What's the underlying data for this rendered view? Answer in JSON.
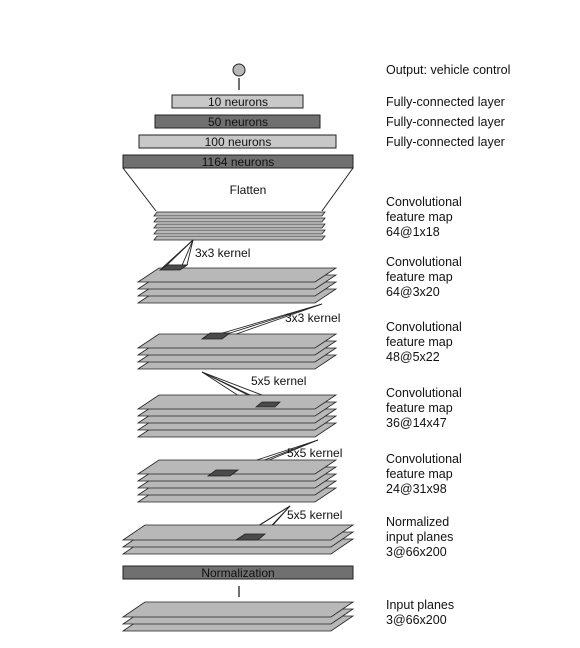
{
  "output_label": "Output: vehicle control",
  "fc_layers": [
    {
      "box_text": "10 neurons",
      "side_label": "Fully-connected layer",
      "fill": "#c8c8c8"
    },
    {
      "box_text": "50 neurons",
      "side_label": "Fully-connected layer",
      "fill": "#707070"
    },
    {
      "box_text": "100 neurons",
      "side_label": "Fully-connected layer",
      "fill": "#c8c8c8"
    },
    {
      "box_text": "1164 neurons",
      "side_label": "",
      "fill": "#707070"
    }
  ],
  "flatten_label": "Flatten",
  "kernels": [
    "3x3 kernel",
    "3x3 kernel",
    "5x5 kernel",
    "5x5 kernel",
    "5x5 kernel"
  ],
  "feature_maps": [
    {
      "lines": [
        "Convolutional",
        "feature map",
        "64@1x18"
      ]
    },
    {
      "lines": [
        "Convolutional",
        "feature map",
        "64@3x20"
      ]
    },
    {
      "lines": [
        "Convolutional",
        "feature map",
        "48@5x22"
      ]
    },
    {
      "lines": [
        "Convolutional",
        "feature map",
        "36@14x47"
      ]
    },
    {
      "lines": [
        "Convolutional",
        "feature map",
        "24@31x98"
      ]
    },
    {
      "lines": [
        "Normalized",
        "input planes",
        "3@66x200"
      ]
    }
  ],
  "normalization_label": "Normalization",
  "input_planes": {
    "lines": [
      "Input planes",
      "3@66x200"
    ]
  },
  "colors": {
    "light_plane": "#b8b8b8",
    "dark_box": "#707070",
    "light_box": "#c8c8c8",
    "kernel_patch": "#4a4a4a"
  }
}
